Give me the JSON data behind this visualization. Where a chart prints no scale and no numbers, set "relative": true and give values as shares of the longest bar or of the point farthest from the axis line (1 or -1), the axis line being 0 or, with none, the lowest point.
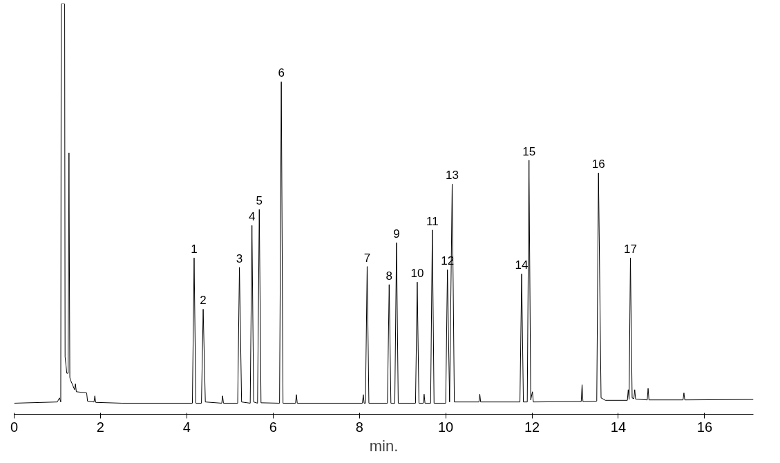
{
  "chart_data": {
    "type": "line",
    "relative": true,
    "xlabel": "min.",
    "xlim": [
      0,
      17.13
    ],
    "xticks": [
      0,
      2,
      4,
      6,
      8,
      10,
      12,
      14,
      16
    ],
    "grid": false,
    "series": [
      {
        "color": "#000000",
        "x": [
          0,
          1.0,
          1.05,
          1.08,
          1.09,
          1.17,
          1.18,
          1.22,
          1.25,
          1.27,
          1.29,
          1.3,
          1.4,
          1.42,
          1.44,
          1.68,
          1.7,
          1.85,
          1.87,
          1.89,
          2.5,
          4.13,
          4.17,
          4.21,
          4.34,
          4.38,
          4.43,
          4.81,
          4.83,
          4.85,
          5.18,
          5.22,
          5.27,
          5.47,
          5.51,
          5.55,
          5.64,
          5.68,
          5.72,
          6.15,
          6.19,
          6.23,
          6.52,
          6.54,
          6.56,
          8.07,
          8.09,
          8.11,
          8.14,
          8.18,
          8.22,
          8.65,
          8.69,
          8.73,
          8.82,
          8.86,
          8.9,
          9.3,
          9.34,
          9.38,
          9.48,
          9.5,
          9.52,
          9.65,
          9.69,
          9.73,
          10.0,
          10.04,
          10.09,
          10.15,
          10.2,
          10.77,
          10.79,
          10.81,
          11.72,
          11.76,
          11.8,
          11.89,
          11.93,
          11.97,
          12.01,
          12.03,
          13.14,
          13.16,
          13.18,
          13.5,
          13.54,
          13.6,
          13.7,
          14.21,
          14.23,
          14.25,
          14.28,
          14.32,
          14.36,
          14.38,
          14.4,
          14.67,
          14.69,
          14.71,
          15.5,
          15.52,
          15.54,
          17.13
        ],
        "values": [
          0.027,
          0.03,
          0.04,
          0.03,
          1.0,
          1.0,
          0.14,
          0.1,
          0.1,
          0.637,
          0.09,
          0.085,
          0.06,
          0.074,
          0.055,
          0.052,
          0.032,
          0.03,
          0.045,
          0.029,
          0.027,
          0.027,
          0.381,
          0.027,
          0.027,
          0.256,
          0.03,
          0.027,
          0.045,
          0.027,
          0.027,
          0.358,
          0.03,
          0.027,
          0.46,
          0.03,
          0.027,
          0.499,
          0.028,
          0.027,
          0.81,
          0.027,
          0.027,
          0.048,
          0.027,
          0.027,
          0.048,
          0.027,
          0.027,
          0.36,
          0.027,
          0.027,
          0.316,
          0.027,
          0.027,
          0.418,
          0.027,
          0.027,
          0.322,
          0.027,
          0.027,
          0.049,
          0.027,
          0.027,
          0.449,
          0.027,
          0.027,
          0.352,
          0.03,
          0.561,
          0.03,
          0.03,
          0.049,
          0.03,
          0.03,
          0.342,
          0.03,
          0.03,
          0.619,
          0.035,
          0.055,
          0.03,
          0.031,
          0.072,
          0.031,
          0.032,
          0.588,
          0.04,
          0.034,
          0.034,
          0.06,
          0.036,
          0.381,
          0.04,
          0.038,
          0.06,
          0.037,
          0.035,
          0.063,
          0.035,
          0.035,
          0.052,
          0.035,
          0.036
        ]
      }
    ],
    "annotations": [
      {
        "text": "1",
        "x": 4.17,
        "y": 0.381
      },
      {
        "text": "2",
        "x": 4.38,
        "y": 0.256
      },
      {
        "text": "3",
        "x": 5.22,
        "y": 0.358
      },
      {
        "text": "4",
        "x": 5.51,
        "y": 0.46
      },
      {
        "text": "5",
        "x": 5.68,
        "y": 0.499
      },
      {
        "text": "6",
        "x": 6.19,
        "y": 0.81
      },
      {
        "text": "7",
        "x": 8.18,
        "y": 0.36
      },
      {
        "text": "8",
        "x": 8.69,
        "y": 0.316
      },
      {
        "text": "9",
        "x": 8.86,
        "y": 0.418
      },
      {
        "text": "10",
        "x": 9.34,
        "y": 0.322
      },
      {
        "text": "11",
        "x": 9.69,
        "y": 0.449
      },
      {
        "text": "12",
        "x": 10.04,
        "y": 0.352
      },
      {
        "text": "13",
        "x": 10.15,
        "y": 0.561
      },
      {
        "text": "14",
        "x": 11.76,
        "y": 0.342
      },
      {
        "text": "15",
        "x": 11.93,
        "y": 0.619
      },
      {
        "text": "16",
        "x": 13.54,
        "y": 0.588
      },
      {
        "text": "17",
        "x": 14.28,
        "y": 0.381
      }
    ]
  }
}
